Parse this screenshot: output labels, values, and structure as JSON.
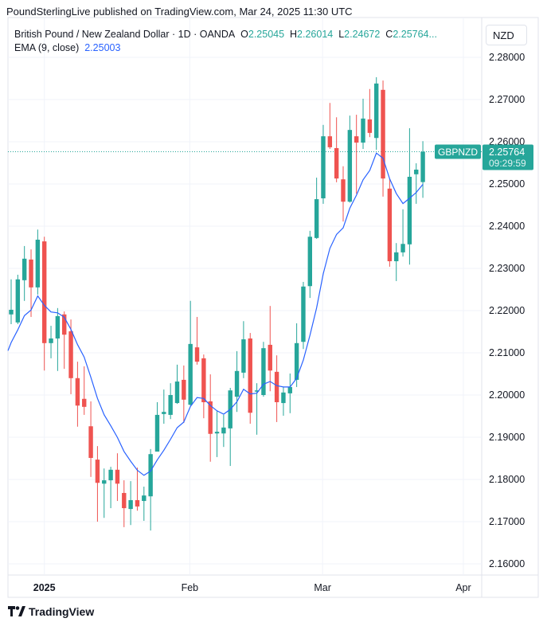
{
  "publisher_line": "PoundSterlingLive published on TradingView.com, Mar 24, 2025 11:30 UTC",
  "legend": {
    "symbol": "British Pound / New Zealand Dollar · 1D · OANDA",
    "o_label": "O",
    "o": "2.25045",
    "h_label": "H",
    "h": "2.26014",
    "l_label": "L",
    "l": "2.24672",
    "c_label": "C",
    "c": "2.25764...",
    "ema_label": "EMA (9, close)",
    "ema_value": "2.25003"
  },
  "currency_button": "NZD",
  "price_tag": {
    "symbol": "GBPNZD",
    "price": "2.25764",
    "countdown": "09:29:59"
  },
  "footer_logo": "TradingView",
  "colors": {
    "up": "#26a69a",
    "down": "#ef5350",
    "ema": "#2962ff"
  },
  "chart_data": {
    "type": "candlestick",
    "title": "British Pound / New Zealand Dollar · 1D · OANDA",
    "ylim": [
      2.155,
      2.283
    ],
    "y_ticks": [
      "2.28000",
      "2.27000",
      "2.26000",
      "2.25000",
      "2.24000",
      "2.23000",
      "2.22000",
      "2.21000",
      "2.20000",
      "2.19000",
      "2.18000",
      "2.17000",
      "2.16000"
    ],
    "x_ticks": [
      {
        "label": "2025",
        "index": 5,
        "bold": true
      },
      {
        "label": "Feb",
        "index": 26.9
      },
      {
        "label": "Mar",
        "index": 46.9
      },
      {
        "label": "Apr",
        "index": 68.1
      }
    ],
    "last_price": 2.25764,
    "ema": {
      "period": 9,
      "initial": 2.2105
    },
    "ohlc": [
      [
        2.2191,
        2.2274,
        2.2168,
        2.2202
      ],
      [
        2.2172,
        2.2285,
        2.2168,
        2.2274
      ],
      [
        2.2272,
        2.2353,
        2.2223,
        2.2323
      ],
      [
        2.2321,
        2.2345,
        2.2185,
        2.2255
      ],
      [
        2.2255,
        2.2392,
        2.2238,
        2.2368
      ],
      [
        2.2364,
        2.2375,
        2.2058,
        2.2123
      ],
      [
        2.2123,
        2.2164,
        2.2087,
        2.2134
      ],
      [
        2.2134,
        2.2206,
        2.2057,
        2.2187
      ],
      [
        2.2191,
        2.2198,
        2.2062,
        2.2143
      ],
      [
        2.2151,
        2.2179,
        2.2002,
        2.204
      ],
      [
        2.204,
        2.2079,
        2.1925,
        2.1975
      ],
      [
        2.1991,
        2.2068,
        2.1953,
        2.1972
      ],
      [
        2.1926,
        2.1985,
        2.1806,
        2.1851
      ],
      [
        2.1847,
        2.1879,
        2.17,
        2.1792
      ],
      [
        2.179,
        2.1826,
        2.1709,
        2.1798
      ],
      [
        2.1798,
        2.183,
        2.1732,
        2.1823
      ],
      [
        2.1823,
        2.1862,
        2.1749,
        2.179
      ],
      [
        2.1768,
        2.1798,
        2.1687,
        2.1732
      ],
      [
        2.173,
        2.1796,
        2.1692,
        2.1751
      ],
      [
        2.1751,
        2.1828,
        2.1726,
        2.1736
      ],
      [
        2.1749,
        2.1783,
        2.1702,
        2.1762
      ],
      [
        2.176,
        2.1872,
        2.1679,
        2.186
      ],
      [
        2.1866,
        2.1983,
        2.1866,
        2.1953
      ],
      [
        2.1955,
        2.2013,
        2.1932,
        2.196
      ],
      [
        2.1953,
        2.2028,
        2.1943,
        2.2
      ],
      [
        2.1981,
        2.2072,
        2.1979,
        2.2032
      ],
      [
        2.2036,
        2.207,
        2.1934,
        2.1989
      ],
      [
        2.1977,
        2.2223,
        2.1975,
        2.2121
      ],
      [
        2.2113,
        2.2185,
        2.2072,
        2.2079
      ],
      [
        2.2087,
        2.2096,
        2.1945,
        2.1983
      ],
      [
        2.1985,
        2.2049,
        2.1842,
        2.1908
      ],
      [
        2.1909,
        2.1962,
        2.1853,
        2.1913
      ],
      [
        2.1909,
        2.1953,
        2.1877,
        2.1923
      ],
      [
        2.1921,
        2.2017,
        2.1832,
        2.2011
      ],
      [
        2.1996,
        2.2104,
        2.196,
        2.2057
      ],
      [
        2.2053,
        2.2175,
        2.204,
        2.2132
      ],
      [
        2.2134,
        2.2147,
        2.1932,
        2.1958
      ],
      [
        2.2008,
        2.2028,
        2.1906,
        2.2011
      ],
      [
        2.2,
        2.2126,
        2.1996,
        2.2111
      ],
      [
        2.2119,
        2.2211,
        2.2009,
        2.2058
      ],
      [
        2.2055,
        2.2094,
        2.1936,
        2.1983
      ],
      [
        2.1981,
        2.2019,
        2.1951,
        2.2006
      ],
      [
        2.2004,
        2.2051,
        2.1957,
        2.2019
      ],
      [
        2.2036,
        2.217,
        2.2019,
        2.2123
      ],
      [
        2.2126,
        2.2268,
        2.2109,
        2.2257
      ],
      [
        2.2258,
        2.2389,
        2.223,
        2.2375
      ],
      [
        2.2372,
        2.2515,
        2.237,
        2.2464
      ],
      [
        2.2466,
        2.264,
        2.2453,
        2.2613
      ],
      [
        2.2613,
        2.2692,
        2.2583,
        2.2587
      ],
      [
        2.2585,
        2.2658,
        2.2504,
        2.2513
      ],
      [
        2.2511,
        2.2542,
        2.2411,
        2.2458
      ],
      [
        2.2458,
        2.2662,
        2.2456,
        2.2628
      ],
      [
        2.2613,
        2.2664,
        2.2477,
        2.2598
      ],
      [
        2.2598,
        2.2702,
        2.2583,
        2.2655
      ],
      [
        2.2653,
        2.2725,
        2.2611,
        2.2621
      ],
      [
        2.2609,
        2.2753,
        2.2581,
        2.2738
      ],
      [
        2.2723,
        2.2745,
        2.247,
        2.2513
      ],
      [
        2.2489,
        2.2513,
        2.2304,
        2.2317
      ],
      [
        2.2317,
        2.236,
        2.227,
        2.2338
      ],
      [
        2.2338,
        2.244,
        2.2328,
        2.2358
      ],
      [
        2.2357,
        2.2632,
        2.2309,
        2.2517
      ],
      [
        2.2523,
        2.2549,
        2.2453,
        2.2534
      ],
      [
        2.25045,
        2.26014,
        2.24672,
        2.25764
      ]
    ]
  }
}
